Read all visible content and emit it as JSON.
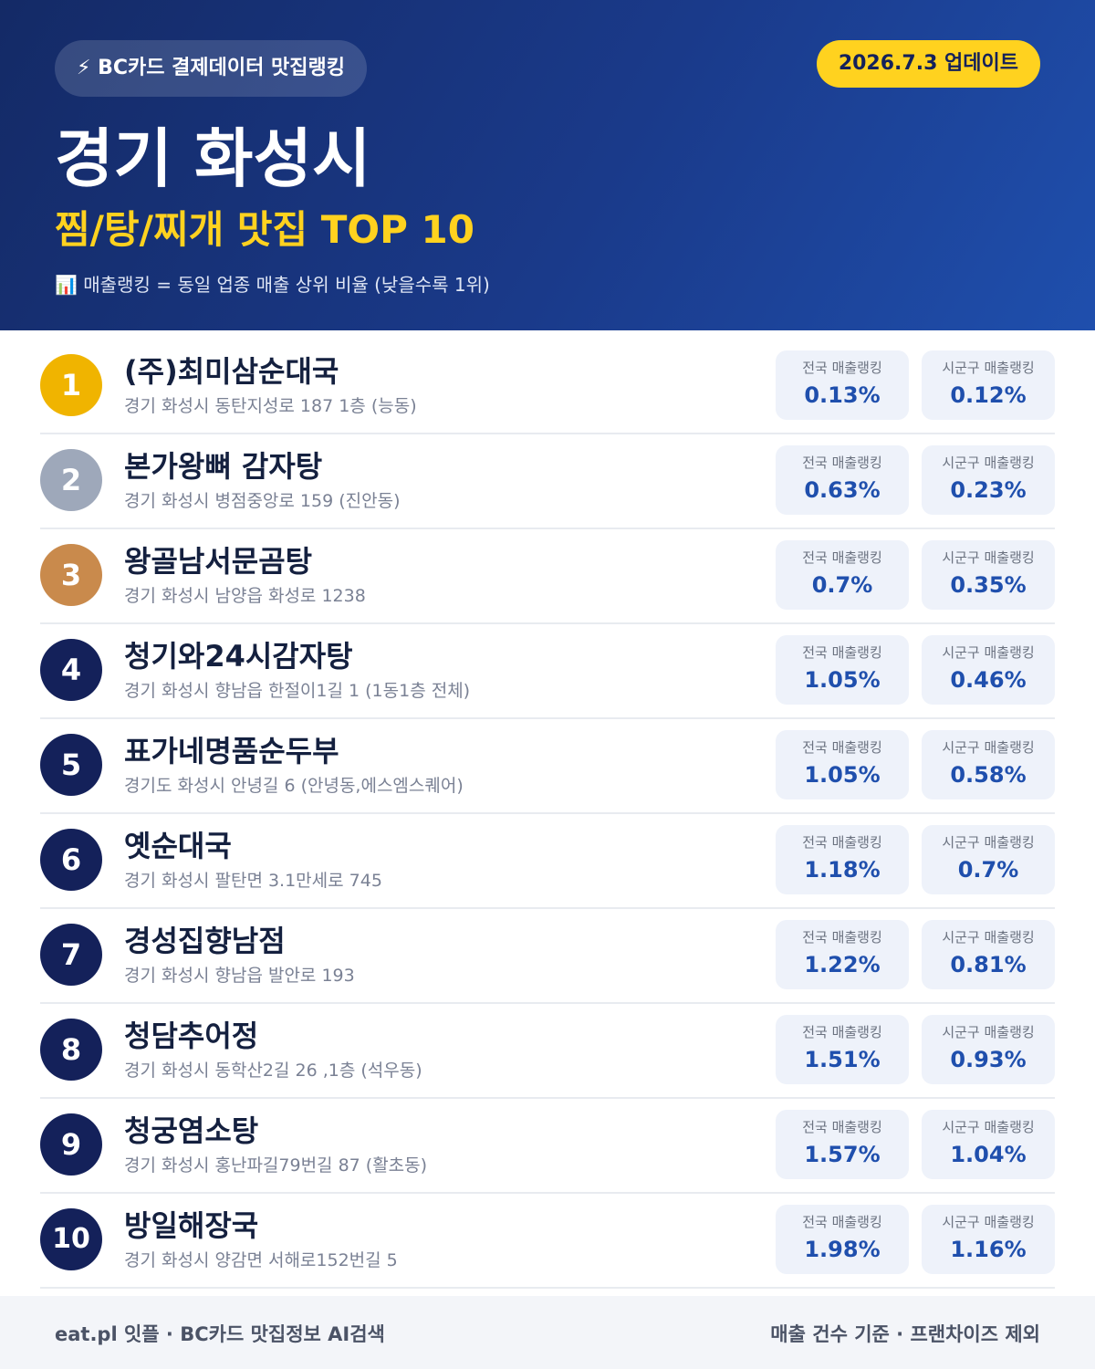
{
  "header": {
    "badge": "⚡ BC카드 결제데이터 맛집랭킹",
    "date": "2026.7.3 업데이트",
    "title": "경기 화성시",
    "subtitle": "찜/탕/찌개 맛집 TOP 10",
    "note": "📊 매출랭킹 = 동일 업종 매출 상위 비율 (낮을수록 1위)"
  },
  "labels": {
    "national": "전국 매출랭킹",
    "local": "시군구 매출랭킹"
  },
  "items": [
    {
      "rank": 1,
      "name": "(주)최미삼순대국",
      "address": "경기 화성시 동탄지성로 187 1층 (능동)",
      "national": "0.13%",
      "local": "0.12%"
    },
    {
      "rank": 2,
      "name": "본가왕뼈 감자탕",
      "address": "경기 화성시 병점중앙로 159 (진안동)",
      "national": "0.63%",
      "local": "0.23%"
    },
    {
      "rank": 3,
      "name": "왕골남서문곰탕",
      "address": "경기 화성시 남양읍 화성로 1238",
      "national": "0.7%",
      "local": "0.35%"
    },
    {
      "rank": 4,
      "name": "청기와24시감자탕",
      "address": "경기 화성시 향남읍 한절이1길 1 (1동1층 전체)",
      "national": "1.05%",
      "local": "0.46%"
    },
    {
      "rank": 5,
      "name": "표가네명품순두부",
      "address": "경기도 화성시 안녕길 6 (안녕동,에스엠스퀘어)",
      "national": "1.05%",
      "local": "0.58%"
    },
    {
      "rank": 6,
      "name": "옛순대국",
      "address": "경기 화성시 팔탄면 3.1만세로 745",
      "national": "1.18%",
      "local": "0.7%"
    },
    {
      "rank": 7,
      "name": "경성집향남점",
      "address": "경기 화성시 향남읍 발안로 193",
      "national": "1.22%",
      "local": "0.81%"
    },
    {
      "rank": 8,
      "name": "청담추어정",
      "address": "경기 화성시 동학산2길 26 ,1층 (석우동)",
      "national": "1.51%",
      "local": "0.93%"
    },
    {
      "rank": 9,
      "name": "청궁염소탕",
      "address": "경기 화성시 홍난파길79번길 87 (활초동)",
      "national": "1.57%",
      "local": "1.04%"
    },
    {
      "rank": 10,
      "name": "방일해장국",
      "address": "경기 화성시 양감면 서해로152번길 5",
      "national": "1.98%",
      "local": "1.16%"
    }
  ],
  "footer": {
    "left": "eat.pl 잇플 · BC카드 맛집정보 AI검색",
    "right": "매출 건수 기준 · 프랜차이즈 제외"
  }
}
